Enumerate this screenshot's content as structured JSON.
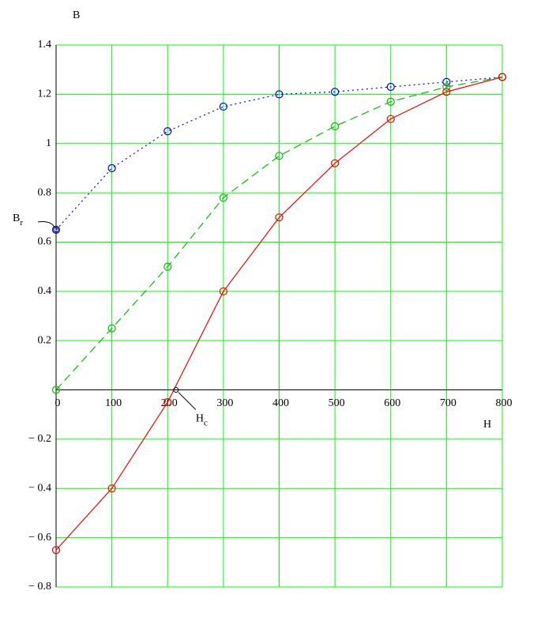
{
  "chart_data": {
    "type": "line",
    "y_label": "B",
    "x_label": "H",
    "x": [
      0,
      100,
      200,
      300,
      400,
      500,
      600,
      700,
      800
    ],
    "series": [
      {
        "color": "#0000ff",
        "style": "dotted",
        "values": [
          0.65,
          0.9,
          1.05,
          1.15,
          1.2,
          1.21,
          1.23,
          1.25,
          1.27
        ]
      },
      {
        "color": "#00c000",
        "style": "dashed",
        "values": [
          0,
          0.25,
          0.5,
          0.78,
          0.95,
          1.07,
          1.17,
          1.23,
          1.27
        ]
      },
      {
        "color": "#ff0000",
        "style": "solid",
        "values": [
          -0.65,
          -0.4,
          -0.05,
          0.4,
          0.7,
          0.92,
          1.1,
          1.21,
          1.27
        ]
      }
    ],
    "annotations": [
      {
        "text": "B",
        "sub": "r",
        "x": 0,
        "y": 0.65
      },
      {
        "text": "H",
        "sub": "c",
        "x": 215,
        "y": 0
      }
    ],
    "xlim": [
      0,
      800
    ],
    "ylim": [
      -0.8,
      1.4
    ],
    "xticks": [
      0,
      100,
      200,
      300,
      400,
      500,
      600,
      700,
      800
    ],
    "yticks": [
      1.4,
      1.2,
      1,
      0.8,
      0.6,
      0.4,
      0.2,
      {
        "value": -0.2,
        "label": "− 0.2"
      },
      {
        "value": -0.4,
        "label": "− 0.4"
      },
      {
        "value": -0.6,
        "label": "− 0.6"
      },
      {
        "value": -0.8,
        "label": "− 0.8"
      }
    ],
    "grid": true,
    "grid_color": "#00ff00"
  }
}
